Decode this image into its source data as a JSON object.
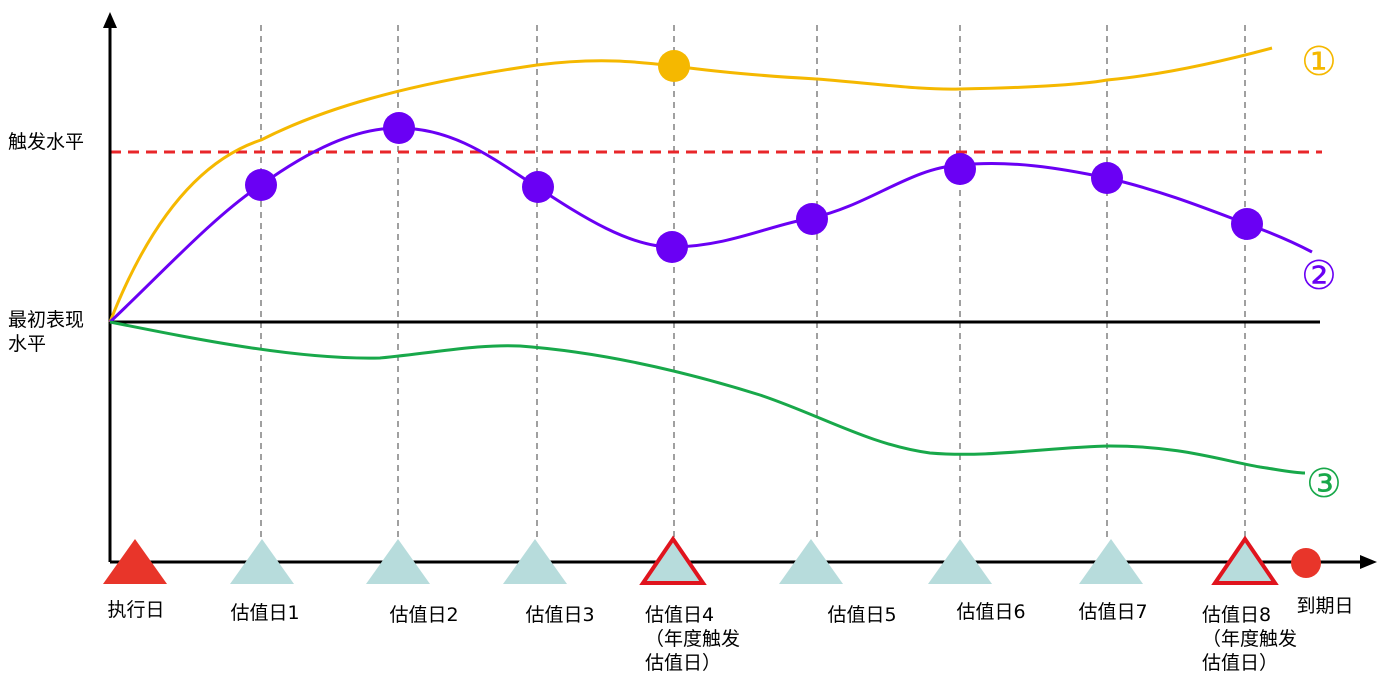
{
  "y_labels": {
    "trigger_level": "触发水平",
    "initial_level_line1": "最初表现",
    "initial_level_line2": "水平"
  },
  "x_labels": {
    "execution_day": "执行日",
    "valuation_1": "估值日1",
    "valuation_2": "估值日2",
    "valuation_3": "估值日3",
    "valuation_4_line1": "估值日4",
    "valuation_4_line2": "（年度触发",
    "valuation_4_line3": "估值日）",
    "valuation_5": "估值日5",
    "valuation_6": "估值日6",
    "valuation_7": "估值日7",
    "valuation_8_line1": "估值日8",
    "valuation_8_line2": "（年度触发",
    "valuation_8_line3": "估值日）",
    "maturity_day": "到期日"
  },
  "curve_labels": {
    "curve_1": "①",
    "curve_2": "②",
    "curve_3": "③"
  },
  "colors": {
    "curve_1": "#F5B800",
    "curve_2": "#6A00F4",
    "curve_3": "#18A84A",
    "trigger_line": "#E8262A",
    "execution_marker": "#E8352A",
    "valuation_marker": "#B7DCDC",
    "annual_trigger_outline": "#E0141E",
    "maturity_marker": "#E8352A",
    "axis": "#000000",
    "gridline": "#808080"
  }
}
